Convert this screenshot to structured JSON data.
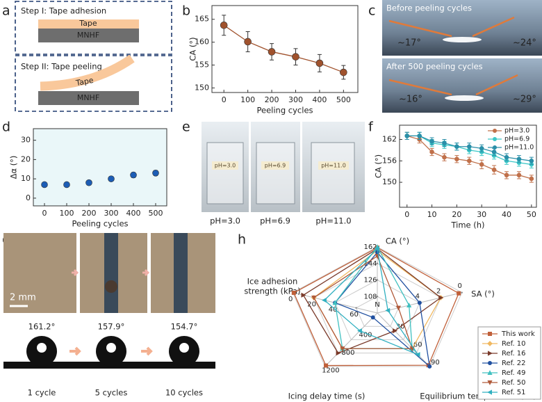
{
  "panels": {
    "a": {
      "label": "a",
      "step1": {
        "title": "Step I: Tape adhesion",
        "tape": "Tape",
        "substrate": "MNHF"
      },
      "step2": {
        "title": "Step II: Tape peeling",
        "tape": "Tape",
        "substrate": "MNHF"
      }
    },
    "c": {
      "label": "c",
      "photos": [
        {
          "caption": "Before peeling cycles",
          "left_angle": "~17°",
          "right_angle": "~24°"
        },
        {
          "caption": "After 500 peeling cycles",
          "left_angle": "~16°",
          "right_angle": "~29°"
        }
      ]
    },
    "e": {
      "label": "e",
      "photos": [
        {
          "beaker_label": "pH=3.0",
          "caption": "pH=3.0"
        },
        {
          "beaker_label": "pH=6.9",
          "caption": "pH=6.9"
        },
        {
          "beaker_label": "pH=11.0",
          "caption": "pH=11.0"
        }
      ]
    },
    "g": {
      "label": "g",
      "scale_bar": "2 mm",
      "drops": [
        {
          "angle": "161.2°",
          "caption": "1 cycle"
        },
        {
          "angle": "157.9°",
          "caption": "5 cycles"
        },
        {
          "angle": "154.7°",
          "caption": "10 cycles"
        }
      ]
    }
  },
  "chart_data": [
    {
      "type": "line",
      "panel_label": "b",
      "xlabel": "Peeling cycles",
      "ylabel": "CA (°)",
      "x": [
        0,
        100,
        200,
        300,
        400,
        500
      ],
      "values": [
        163.7,
        160.1,
        157.9,
        156.8,
        155.4,
        153.4
      ],
      "errors": [
        2.2,
        2.2,
        1.8,
        1.8,
        1.9,
        1.5
      ],
      "color": "#a0522d",
      "xlim": [
        -50,
        560
      ],
      "ylim": [
        149,
        168
      ],
      "xticks": [
        0,
        100,
        200,
        300,
        400,
        500
      ],
      "yticks": [
        150,
        155,
        160,
        165
      ]
    },
    {
      "type": "scatter",
      "panel_label": "d",
      "xlabel": "Peeling cycles",
      "ylabel": "Δα (°)",
      "x": [
        0,
        100,
        200,
        300,
        400,
        500
      ],
      "values": [
        7,
        7,
        8,
        10,
        12,
        13
      ],
      "errors": [
        0.5,
        0.5,
        0.7,
        1.2,
        1.3,
        1.3
      ],
      "color": "#1c5db5",
      "background": "#eaf7f9",
      "xlim": [
        -50,
        550
      ],
      "ylim": [
        -4,
        36
      ],
      "xticks": [
        0,
        100,
        200,
        300,
        400,
        500
      ],
      "yticks": [
        0,
        10,
        20,
        30
      ]
    },
    {
      "type": "line",
      "panel_label": "f",
      "xlabel": "Time (h)",
      "ylabel": "CA (°)",
      "x": [
        0,
        5,
        10,
        15,
        20,
        25,
        30,
        35,
        40,
        45,
        50
      ],
      "series": [
        {
          "name": "pH=3.0",
          "color": "#c0704a",
          "values": [
            163,
            162,
            158.5,
            157,
            156.5,
            156,
            155,
            153.5,
            152,
            152,
            151
          ],
          "errors": [
            1,
            1,
            1,
            1,
            1,
            1,
            1.2,
            1.2,
            1,
            1,
            1
          ]
        },
        {
          "name": "pH=6.9",
          "color": "#3cc8c8",
          "values": [
            163,
            163,
            161,
            160.5,
            160,
            159,
            158.5,
            157.5,
            156,
            155.5,
            155
          ],
          "errors": [
            1,
            1,
            1,
            1,
            1,
            1,
            1,
            1,
            1,
            1,
            1
          ]
        },
        {
          "name": "pH=11.0",
          "color": "#2a8fa8",
          "values": [
            163,
            163,
            161.5,
            161,
            160,
            160,
            159.5,
            158.5,
            157,
            156.5,
            156
          ],
          "errors": [
            1,
            1,
            1,
            1,
            1,
            1,
            1,
            1,
            1,
            1,
            1
          ]
        }
      ],
      "legend": "upper right",
      "xlim": [
        -3,
        52
      ],
      "ylim": [
        143,
        166
      ],
      "xticks": [
        0,
        10,
        20,
        30,
        40,
        50
      ],
      "yticks": [
        150,
        156,
        162
      ]
    },
    {
      "type": "radar",
      "panel_label": "h",
      "center_label": "N",
      "axes": [
        {
          "label": [
            "CA (°)"
          ],
          "lim": [
            90,
            162
          ],
          "ticks": [
            108,
            126,
            144,
            162
          ]
        },
        {
          "label": [
            "SA (°)"
          ],
          "lim": [
            8,
            0
          ],
          "ticks": [
            4,
            2,
            0
          ]
        },
        {
          "label": [
            "Equilibrium temperature (°C)"
          ],
          "lim": [
            0,
            90
          ],
          "ticks": [
            30,
            60,
            90
          ]
        },
        {
          "label": [
            "Icing delay time (s)"
          ],
          "lim": [
            0,
            1200
          ],
          "ticks": [
            400,
            800,
            1200
          ]
        },
        {
          "label": [
            "Ice adhesion",
            "strength (kPa)"
          ],
          "lim": [
            80,
            0
          ],
          "ticks": [
            60,
            40,
            20,
            0
          ]
        }
      ],
      "series": [
        {
          "name": "This work",
          "color": "#c0603a",
          "marker": "square",
          "values": [
            161.2,
            0.3,
            88,
            1180,
            1
          ]
        },
        {
          "name": "Ref. 10",
          "color": "#f0b860",
          "marker": "diamond",
          "values": [
            158,
            2,
            60,
            800,
            20
          ]
        },
        {
          "name": "Ref. 16",
          "color": "#7a3a2a",
          "marker": "triangle-right",
          "values": [
            160,
            2,
            30,
            900,
            10
          ]
        },
        {
          "name": "Ref. 22",
          "color": "#2050a0",
          "marker": "circle",
          "values": [
            156,
            4,
            90,
            100,
            40
          ]
        },
        {
          "name": "Ref. 49",
          "color": "#40c0c0",
          "marker": "triangle-up",
          "values": [
            162,
            5,
            60,
            800,
            40
          ]
        },
        {
          "name": "Ref. 50",
          "color": "#b05a3a",
          "marker": "triangle-down",
          "values": [
            152,
            6,
            60,
            800,
            20
          ]
        },
        {
          "name": "Ref. 51",
          "color": "#30b0c0",
          "marker": "triangle-left",
          "values": [
            160,
            7,
            70,
            400,
            30
          ]
        }
      ]
    }
  ]
}
